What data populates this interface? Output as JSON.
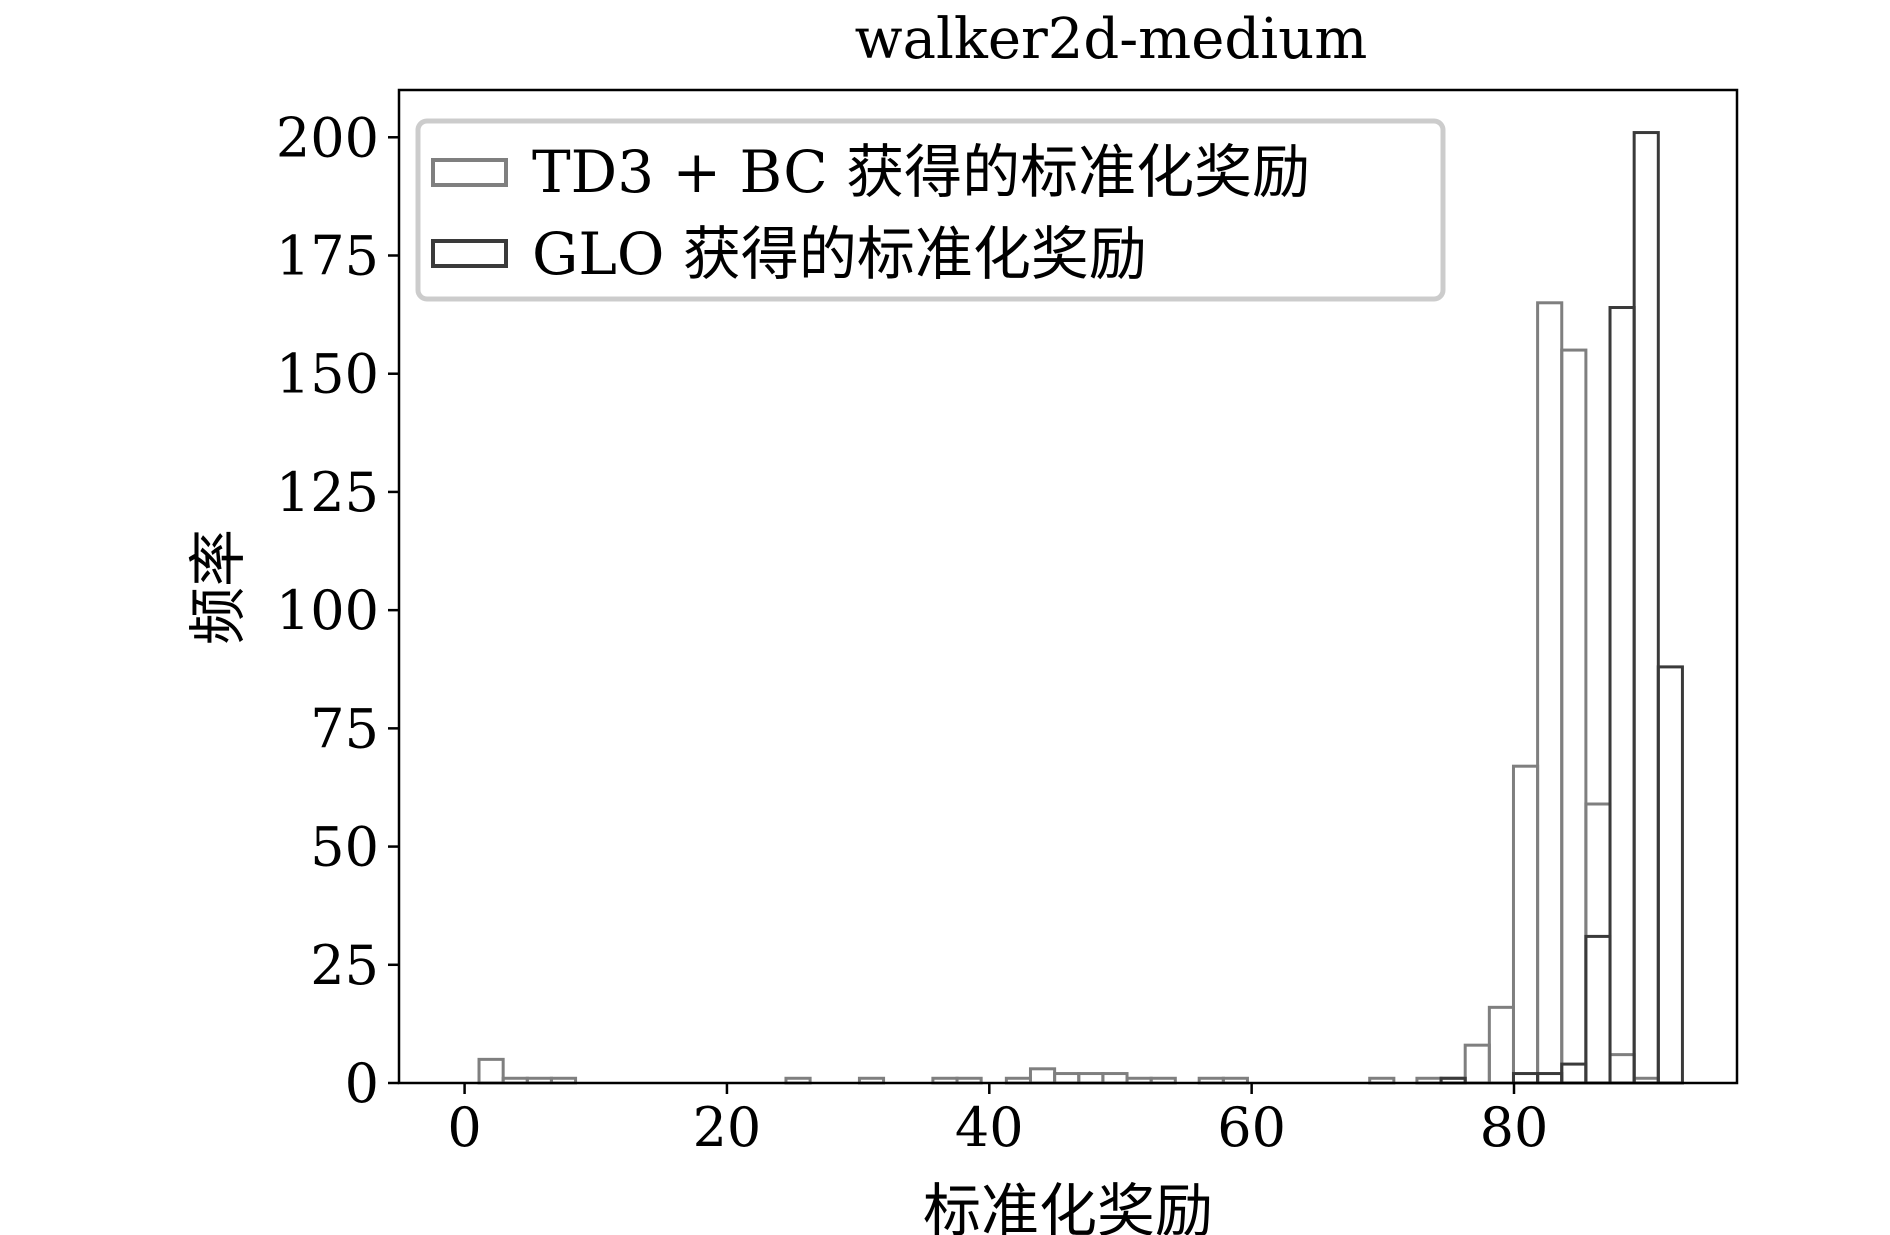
{
  "chart_data": {
    "type": "bar",
    "subtype": "histogram",
    "title": "walker2d-medium",
    "xlabel": "标准化奖励",
    "ylabel": "频率",
    "xlim": [
      -5,
      97
    ],
    "ylim": [
      0,
      210
    ],
    "xticks": [
      0,
      20,
      40,
      60,
      80
    ],
    "yticks": [
      0,
      25,
      50,
      75,
      100,
      125,
      150,
      175,
      200
    ],
    "bin_width": 1.84,
    "legend": "top-left",
    "grid": false,
    "series": [
      {
        "name": "TD3 + BC 获得的标准化奖励",
        "stroke": "#7f7f7f",
        "bins": [
          {
            "x0": 1.1,
            "count": 5
          },
          {
            "x0": 2.94,
            "count": 1
          },
          {
            "x0": 4.78,
            "count": 1
          },
          {
            "x0": 6.62,
            "count": 1
          },
          {
            "x0": 24.5,
            "count": 1
          },
          {
            "x0": 30.1,
            "count": 1
          },
          {
            "x0": 35.7,
            "count": 1
          },
          {
            "x0": 37.54,
            "count": 1
          },
          {
            "x0": 41.3,
            "count": 1
          },
          {
            "x0": 43.14,
            "count": 3
          },
          {
            "x0": 44.98,
            "count": 2
          },
          {
            "x0": 46.82,
            "count": 2
          },
          {
            "x0": 48.66,
            "count": 2
          },
          {
            "x0": 50.5,
            "count": 1
          },
          {
            "x0": 52.34,
            "count": 1
          },
          {
            "x0": 56.0,
            "count": 1
          },
          {
            "x0": 57.84,
            "count": 1
          },
          {
            "x0": 69.0,
            "count": 1
          },
          {
            "x0": 72.6,
            "count": 1
          },
          {
            "x0": 74.44,
            "count": 1
          },
          {
            "x0": 76.28,
            "count": 8
          },
          {
            "x0": 78.12,
            "count": 16
          },
          {
            "x0": 79.96,
            "count": 67
          },
          {
            "x0": 81.8,
            "count": 165
          },
          {
            "x0": 83.64,
            "count": 155
          },
          {
            "x0": 85.48,
            "count": 59
          },
          {
            "x0": 87.32,
            "count": 6
          },
          {
            "x0": 89.16,
            "count": 1
          }
        ]
      },
      {
        "name": "GLO 获得的标准化奖励",
        "stroke": "#3a3a3a",
        "bins": [
          {
            "x0": 74.44,
            "count": 1
          },
          {
            "x0": 79.96,
            "count": 2
          },
          {
            "x0": 81.8,
            "count": 2
          },
          {
            "x0": 83.64,
            "count": 4
          },
          {
            "x0": 85.48,
            "count": 31
          },
          {
            "x0": 87.32,
            "count": 164
          },
          {
            "x0": 89.16,
            "count": 201
          },
          {
            "x0": 91.0,
            "count": 88
          }
        ]
      }
    ]
  }
}
